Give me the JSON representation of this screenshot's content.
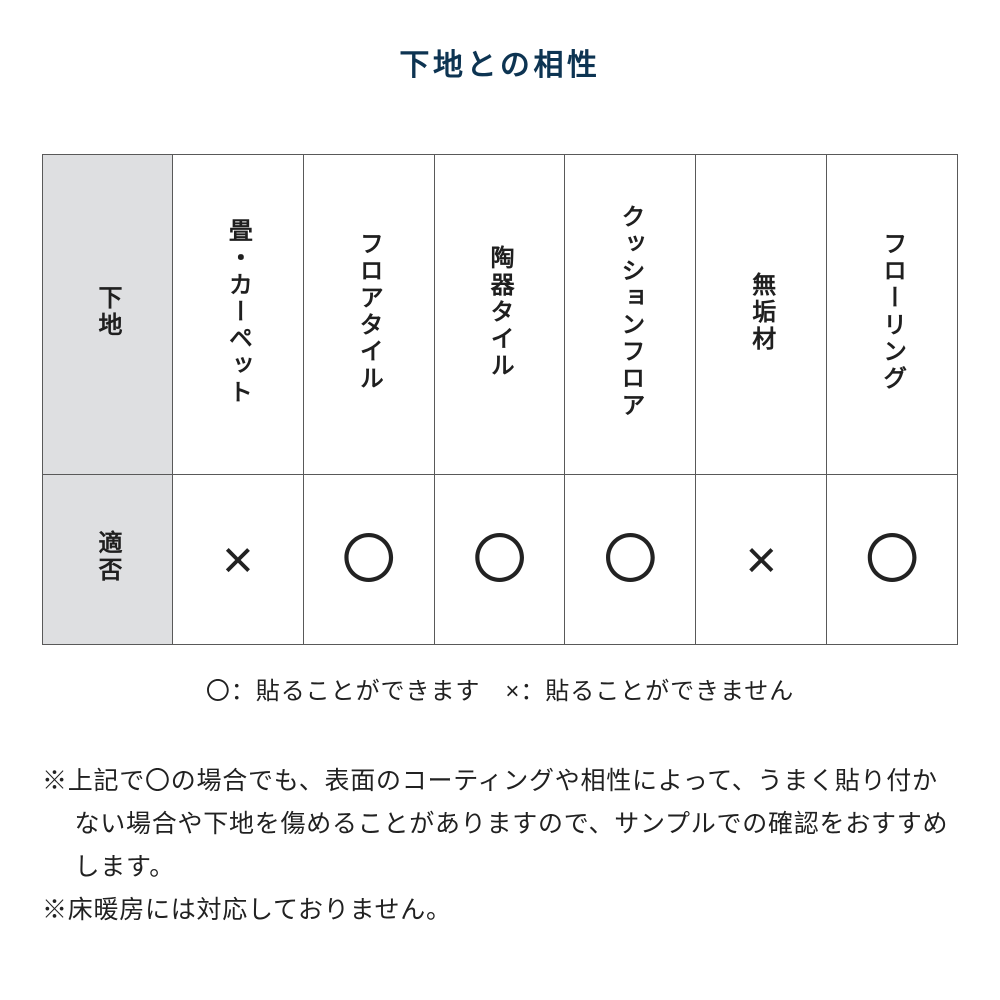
{
  "title": "下地との相性",
  "table": {
    "row_header_1": "下地",
    "row_header_2": "適否",
    "columns": [
      "畳・カーペット",
      "フロアタイル",
      "陶器タイル",
      "クッションフロア",
      "無垢材",
      "フローリング"
    ],
    "values": [
      "×",
      "〇",
      "〇",
      "〇",
      "×",
      "〇"
    ]
  },
  "legend": "〇：貼ることができます　×：貼ることができません",
  "notes": [
    "※上記で〇の場合でも、表面のコーティングや相性によって、うまく貼り付かない場合や下地を傷めることがありますので、サンプルでの確認をおすすめします。",
    "※床暖房には対応しておりません。"
  ],
  "colors": {
    "title": "#0d3452",
    "border": "#595959",
    "header_bg": "#dedfe1",
    "text": "#212121",
    "background": "#ffffff"
  }
}
